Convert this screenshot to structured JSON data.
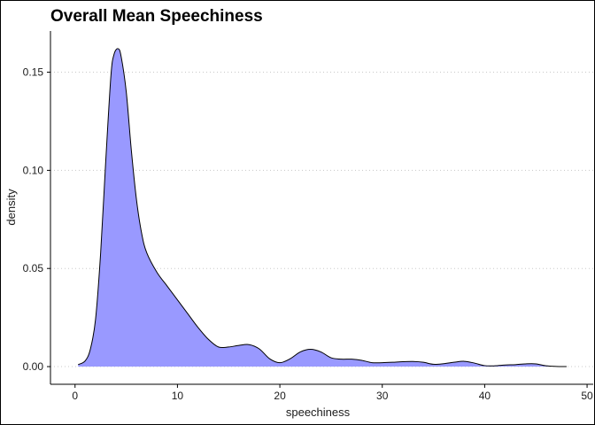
{
  "chart_data": {
    "type": "area",
    "title": "Overall Mean Speechiness",
    "xlabel": "speechiness",
    "ylabel": "density",
    "xlim": [
      -2.4,
      50.6
    ],
    "ylim": [
      -0.009,
      0.171
    ],
    "x_ticks": [
      0,
      10,
      20,
      30,
      40,
      50
    ],
    "x_tick_labels": [
      "0",
      "10",
      "20",
      "30",
      "40",
      "50"
    ],
    "y_ticks": [
      0.0,
      0.05,
      0.1,
      0.15
    ],
    "y_tick_labels": [
      "0.00",
      "0.05",
      "0.10",
      "0.15"
    ],
    "grid": "horizontal-dotted",
    "fill_color": "#9999ff",
    "line_color": "#000000",
    "series": [
      {
        "x": [
          0.3,
          1,
          1.5,
          2,
          2.5,
          3,
          3.5,
          3.8,
          4.2,
          4.5,
          5,
          5.5,
          6,
          6.5,
          7,
          8,
          9,
          10,
          11,
          12,
          13,
          14,
          15,
          16,
          17,
          18,
          19,
          20,
          21,
          22,
          23,
          24,
          25,
          26,
          27,
          28,
          29,
          30,
          31,
          32,
          33,
          34,
          35,
          36,
          37,
          38,
          39,
          40,
          41,
          42,
          43,
          44,
          45,
          46,
          47,
          48
        ],
        "y": [
          0.001,
          0.003,
          0.009,
          0.024,
          0.058,
          0.105,
          0.148,
          0.159,
          0.162,
          0.158,
          0.14,
          0.11,
          0.085,
          0.068,
          0.058,
          0.048,
          0.041,
          0.034,
          0.027,
          0.02,
          0.014,
          0.01,
          0.01,
          0.0108,
          0.0112,
          0.009,
          0.004,
          0.002,
          0.004,
          0.0075,
          0.0088,
          0.0075,
          0.0045,
          0.0038,
          0.0038,
          0.0032,
          0.002,
          0.002,
          0.0022,
          0.0025,
          0.0026,
          0.0022,
          0.0012,
          0.0015,
          0.0022,
          0.0027,
          0.0018,
          0.0005,
          0.0004,
          0.0008,
          0.001,
          0.0014,
          0.0014,
          0.0004,
          0.0001,
          0.0
        ]
      }
    ]
  }
}
